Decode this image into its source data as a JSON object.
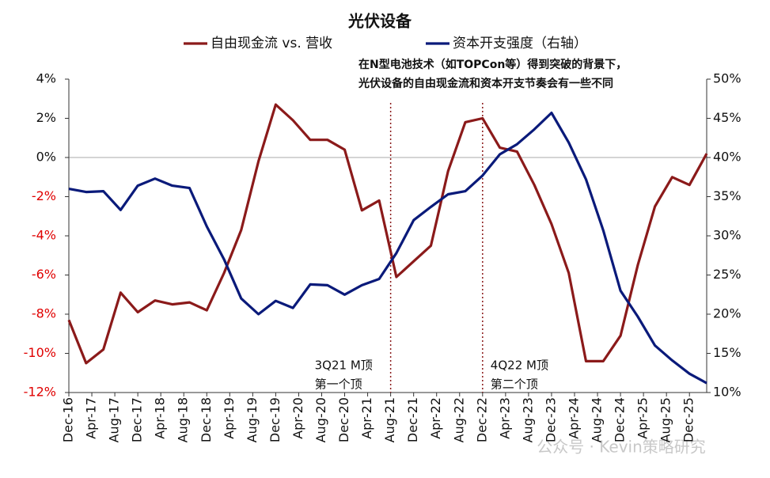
{
  "chart_data": {
    "type": "line",
    "title": "光伏设备",
    "x": [
      "Dec-16",
      "Mar-17",
      "Jun-17",
      "Sep-17",
      "Dec-17",
      "Mar-18",
      "Jun-18",
      "Sep-18",
      "Dec-18",
      "Mar-19",
      "Jun-19",
      "Sep-19",
      "Dec-19",
      "Mar-20",
      "Jun-20",
      "Sep-20",
      "Dec-20",
      "Mar-21",
      "Jun-21",
      "Sep-21",
      "Dec-21",
      "Mar-22",
      "Jun-22",
      "Sep-22",
      "Dec-22",
      "Mar-23",
      "Jun-23",
      "Sep-23",
      "Dec-23",
      "Mar-24",
      "Jun-24",
      "Sep-24",
      "Dec-24",
      "Mar-25",
      "Jun-25",
      "Sep-25",
      "Dec-25",
      "Mar-26"
    ],
    "xticks": [
      "Dec-16",
      "Apr-17",
      "Aug-17",
      "Dec-17",
      "Apr-18",
      "Aug-18",
      "Dec-18",
      "Apr-19",
      "Aug-19",
      "Dec-19",
      "Apr-20",
      "Aug-20",
      "Dec-20",
      "Apr-21",
      "Aug-21",
      "Dec-21",
      "Apr-22",
      "Aug-22",
      "Dec-22",
      "Apr-23",
      "Aug-23",
      "Dec-23",
      "Apr-24",
      "Aug-24",
      "Dec-24",
      "Apr-25",
      "Aug-25",
      "Dec-25"
    ],
    "series": [
      {
        "name": "自由现金流 vs. 营收",
        "color": "#8b1a1a",
        "axis": "y",
        "values": [
          -8.3,
          -10.5,
          -9.8,
          -6.9,
          -7.9,
          -7.3,
          -7.5,
          -7.4,
          -7.8,
          -5.9,
          -3.7,
          -0.2,
          2.7,
          1.9,
          0.9,
          0.9,
          0.4,
          -2.7,
          -2.2,
          -6.1,
          -5.3,
          -4.5,
          -0.7,
          1.8,
          2.0,
          0.5,
          0.3,
          -1.4,
          -3.4,
          -5.9,
          -10.4,
          -10.4,
          -9.1,
          -5.5,
          -2.5,
          -1.0,
          -1.4,
          0.2
        ]
      },
      {
        "name": "资本开支强度（右轴）",
        "color": "#0a1a7a",
        "axis": "y2",
        "values": [
          36.0,
          35.6,
          35.7,
          33.3,
          36.4,
          37.3,
          36.4,
          36.1,
          31.2,
          27.0,
          22.0,
          20.0,
          21.7,
          20.8,
          23.8,
          23.7,
          22.5,
          23.7,
          24.5,
          27.8,
          32.0,
          33.7,
          35.3,
          35.7,
          37.7,
          40.4,
          41.7,
          43.6,
          45.7,
          41.9,
          37.2,
          30.7,
          23.0,
          19.7,
          16.0,
          14.1,
          12.4,
          11.2
        ]
      }
    ],
    "ylim": [
      -12,
      4
    ],
    "yticks": [
      {
        "value": -12,
        "label": "-12%"
      },
      {
        "value": -10,
        "label": "-10%"
      },
      {
        "value": -8,
        "label": "-8%"
      },
      {
        "value": -6,
        "label": "-6%"
      },
      {
        "value": -4,
        "label": "-4%"
      },
      {
        "value": -2,
        "label": "-2%"
      },
      {
        "value": 0,
        "label": "0%"
      },
      {
        "value": 2,
        "label": "2%"
      },
      {
        "value": 4,
        "label": "4%"
      }
    ],
    "y2lim": [
      10,
      50
    ],
    "y2ticks": [
      {
        "value": 10,
        "label": "10%"
      },
      {
        "value": 15,
        "label": "15%"
      },
      {
        "value": 20,
        "label": "20%"
      },
      {
        "value": 25,
        "label": "25%"
      },
      {
        "value": 30,
        "label": "30%"
      },
      {
        "value": 35,
        "label": "35%"
      },
      {
        "value": 40,
        "label": "40%"
      },
      {
        "value": 45,
        "label": "45%"
      },
      {
        "value": 50,
        "label": "50%"
      }
    ],
    "negative_tick_color": "#e00000",
    "legend": "top",
    "annotations": [
      {
        "x": "Aug-21",
        "lines": [
          "3Q21 M顶",
          "第一个顶"
        ]
      },
      {
        "x": "Dec-22",
        "lines": [
          "4Q22 M顶",
          "第二个顶"
        ]
      }
    ],
    "note": [
      "在N型电池技术（如TOPCon等）得到突破的背景下，",
      "光伏设备的自由现金流和资本开支节奏会有一些不同"
    ],
    "watermark": "公众号 · Kevin策略研究"
  }
}
